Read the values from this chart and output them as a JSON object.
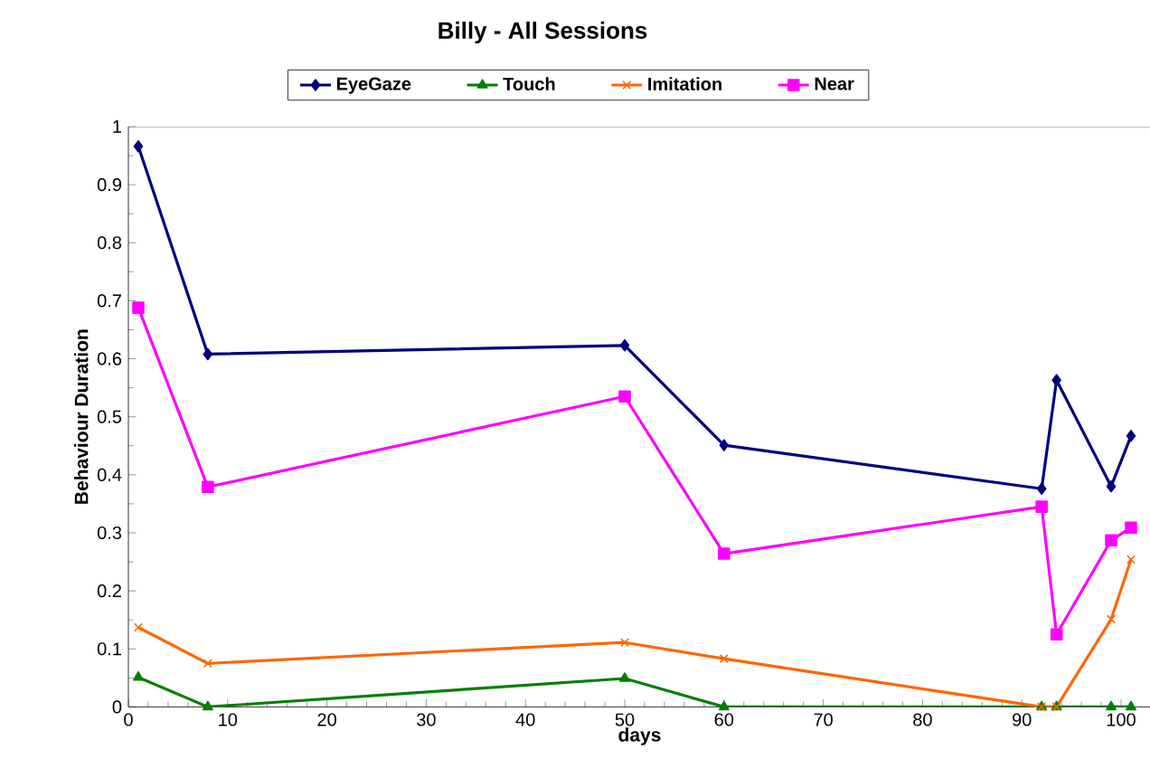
{
  "chart_data": {
    "type": "line",
    "title": "Billy -  All Sessions",
    "xlabel": "days",
    "ylabel": "Behaviour Duration",
    "xlim": [
      0,
      103
    ],
    "xticks": [
      0,
      10,
      20,
      30,
      40,
      50,
      60,
      70,
      80,
      90,
      100
    ],
    "ylim": [
      0,
      1
    ],
    "yticks": [
      0,
      0.1,
      0.2,
      0.3,
      0.4,
      0.5,
      0.6,
      0.7,
      0.8,
      0.9,
      1
    ],
    "grid": false,
    "legend": "top",
    "line_style": "solid",
    "series": [
      {
        "name": "EyeGaze",
        "color": "#000080",
        "marker": "diamond",
        "x": [
          1,
          8,
          50,
          60,
          92,
          93.5,
          99,
          101
        ],
        "values": [
          0.966,
          0.608,
          0.623,
          0.451,
          0.376,
          0.563,
          0.38,
          0.467
        ]
      },
      {
        "name": "Touch",
        "color": "#008000",
        "marker": "triangle",
        "x": [
          1,
          8,
          50,
          60,
          92,
          93.5,
          99,
          101
        ],
        "values": [
          0.051,
          0,
          0.049,
          0,
          0,
          0,
          0,
          0
        ]
      },
      {
        "name": "Imitation",
        "color": "#ff6600",
        "marker": "cross",
        "x": [
          1,
          8,
          50,
          60,
          92,
          93.5,
          99,
          101
        ],
        "values": [
          0.137,
          0.075,
          0.111,
          0.083,
          0,
          0,
          0.151,
          0.254
        ]
      },
      {
        "name": "Near",
        "color": "#ff00ff",
        "marker": "square",
        "x": [
          1,
          8,
          50,
          60,
          92,
          93.5,
          99,
          101
        ],
        "values": [
          0.688,
          0.379,
          0.535,
          0.264,
          0.345,
          0.125,
          0.287,
          0.309
        ]
      }
    ]
  }
}
